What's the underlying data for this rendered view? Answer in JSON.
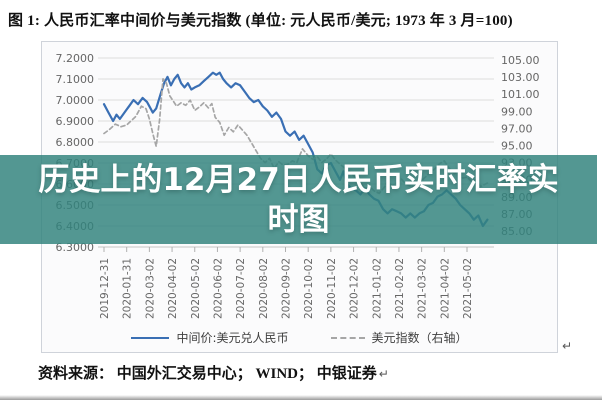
{
  "header": {
    "title": "图 1: 人民币汇率中间价与美元指数 (单位: 元人民币/美元; 1973 年 3 月=100)"
  },
  "overlay": {
    "lines": [
      "历史上的12月27日人民币实时汇率实",
      "时图"
    ],
    "band_color": "rgba(50,131,125,0.84)"
  },
  "footer": {
    "source": "资料来源： 中国外汇交易中心； WIND； 中银证券",
    "return_mark": "↵"
  },
  "colors": {
    "cny_line": "#3a6fb4",
    "usd_line": "#a6a6a6",
    "gridline": "#dcdcdc",
    "axis_text": "#666666"
  },
  "chart_data": {
    "type": "line",
    "title": "人民币汇率中间价与美元指数",
    "unit_note": "元人民币/美元; 1973 年 3 月=100",
    "grid": true,
    "legend_position": "bottom",
    "x_tick_labels": [
      "2019-12-31",
      "2020-01-31",
      "2020-03-02",
      "2020-04-02",
      "2020-05-02",
      "2020-06-02",
      "2020-07-02",
      "2020-08-02",
      "2020-09-02",
      "2020-10-02",
      "2020-11-02",
      "2020-12-02",
      "2021-01-02",
      "2021-02-02",
      "2021-03-02",
      "2021-04-02",
      "2021-05-02"
    ],
    "y_left_axis": {
      "labels": [
        "7.2000",
        "7.1000",
        "7.0000",
        "6.9000",
        "6.8000",
        "6.7000",
        "6.6000",
        "6.5000",
        "6.4000",
        "6.3000"
      ],
      "min": 6.3,
      "max": 7.2
    },
    "y_right_axis": {
      "labels": [
        "105.00",
        "103.00",
        "101.00",
        "99.00",
        "97.00",
        "95.00",
        "93.00",
        "91.00",
        "89.00",
        "87.00",
        "85.00"
      ],
      "min": 85,
      "max": 105
    },
    "series": [
      {
        "name": "中间价:美元兑人民币",
        "axis": "left",
        "line_style": "solid",
        "color": "#3a6fb4",
        "points": [
          [
            0,
            6.98
          ],
          [
            0.2,
            6.94
          ],
          [
            0.4,
            6.9
          ],
          [
            0.55,
            6.93
          ],
          [
            0.7,
            6.91
          ],
          [
            0.9,
            6.94
          ],
          [
            1.1,
            6.97
          ],
          [
            1.3,
            7.0
          ],
          [
            1.5,
            6.98
          ],
          [
            1.7,
            7.01
          ],
          [
            1.9,
            6.99
          ],
          [
            2.0,
            6.97
          ],
          [
            2.15,
            6.94
          ],
          [
            2.3,
            6.96
          ],
          [
            2.5,
            7.03
          ],
          [
            2.65,
            7.08
          ],
          [
            2.8,
            7.11
          ],
          [
            2.95,
            7.07
          ],
          [
            3.1,
            7.1
          ],
          [
            3.25,
            7.12
          ],
          [
            3.4,
            7.08
          ],
          [
            3.55,
            7.06
          ],
          [
            3.7,
            7.08
          ],
          [
            3.85,
            7.05
          ],
          [
            4.0,
            7.06
          ],
          [
            4.2,
            7.07
          ],
          [
            4.4,
            7.09
          ],
          [
            4.6,
            7.11
          ],
          [
            4.8,
            7.13
          ],
          [
            4.95,
            7.12
          ],
          [
            5.1,
            7.13
          ],
          [
            5.25,
            7.1
          ],
          [
            5.4,
            7.08
          ],
          [
            5.6,
            7.06
          ],
          [
            5.8,
            7.08
          ],
          [
            6.0,
            7.07
          ],
          [
            6.2,
            7.04
          ],
          [
            6.4,
            7.01
          ],
          [
            6.6,
            6.99
          ],
          [
            6.8,
            7.0
          ],
          [
            7.0,
            6.97
          ],
          [
            7.2,
            6.95
          ],
          [
            7.4,
            6.92
          ],
          [
            7.6,
            6.94
          ],
          [
            7.8,
            6.91
          ],
          [
            8.0,
            6.85
          ],
          [
            8.2,
            6.83
          ],
          [
            8.4,
            6.85
          ],
          [
            8.6,
            6.81
          ],
          [
            8.8,
            6.83
          ],
          [
            9.0,
            6.79
          ],
          [
            9.2,
            6.75
          ],
          [
            9.4,
            6.67
          ],
          [
            9.6,
            6.65
          ],
          [
            9.8,
            6.69
          ],
          [
            10.0,
            6.7
          ],
          [
            10.2,
            6.66
          ],
          [
            10.4,
            6.62
          ],
          [
            10.55,
            6.66
          ],
          [
            10.7,
            6.6
          ],
          [
            10.9,
            6.58
          ],
          [
            11.1,
            6.57
          ],
          [
            11.3,
            6.55
          ],
          [
            11.5,
            6.58
          ],
          [
            11.7,
            6.55
          ],
          [
            11.9,
            6.53
          ],
          [
            12.1,
            6.52
          ],
          [
            12.3,
            6.48
          ],
          [
            12.5,
            6.46
          ],
          [
            12.7,
            6.48
          ],
          [
            12.9,
            6.47
          ],
          [
            13.1,
            6.46
          ],
          [
            13.3,
            6.44
          ],
          [
            13.5,
            6.46
          ],
          [
            13.7,
            6.44
          ],
          [
            13.9,
            6.46
          ],
          [
            14.1,
            6.47
          ],
          [
            14.3,
            6.5
          ],
          [
            14.5,
            6.51
          ],
          [
            14.7,
            6.54
          ],
          [
            14.9,
            6.55
          ],
          [
            15.1,
            6.57
          ],
          [
            15.3,
            6.55
          ],
          [
            15.5,
            6.53
          ],
          [
            15.7,
            6.5
          ],
          [
            15.9,
            6.48
          ],
          [
            16.1,
            6.46
          ],
          [
            16.3,
            6.43
          ],
          [
            16.5,
            6.45
          ],
          [
            16.7,
            6.4
          ],
          [
            16.9,
            6.43
          ]
        ]
      },
      {
        "name": "美元指数（右轴）",
        "axis": "right",
        "line_style": "dashed",
        "color": "#a6a6a6",
        "points": [
          [
            0,
            96.4
          ],
          [
            0.25,
            96.9
          ],
          [
            0.5,
            97.5
          ],
          [
            0.75,
            97.2
          ],
          [
            1.0,
            97.4
          ],
          [
            1.2,
            97.9
          ],
          [
            1.4,
            98.4
          ],
          [
            1.65,
            99.6
          ],
          [
            1.85,
            99.3
          ],
          [
            2.0,
            98.1
          ],
          [
            2.15,
            96.4
          ],
          [
            2.3,
            94.9
          ],
          [
            2.45,
            98.0
          ],
          [
            2.6,
            102.8
          ],
          [
            2.75,
            102.3
          ],
          [
            2.9,
            100.8
          ],
          [
            3.05,
            100.2
          ],
          [
            3.2,
            99.6
          ],
          [
            3.4,
            100.0
          ],
          [
            3.6,
            99.7
          ],
          [
            3.8,
            100.3
          ],
          [
            4.0,
            99.1
          ],
          [
            4.2,
            99.5
          ],
          [
            4.4,
            100.0
          ],
          [
            4.6,
            99.4
          ],
          [
            4.75,
            99.9
          ],
          [
            4.9,
            98.3
          ],
          [
            5.1,
            97.7
          ],
          [
            5.3,
            96.2
          ],
          [
            5.5,
            97.1
          ],
          [
            5.7,
            96.6
          ],
          [
            5.9,
            97.4
          ],
          [
            6.1,
            96.8
          ],
          [
            6.3,
            96.2
          ],
          [
            6.5,
            95.3
          ],
          [
            6.7,
            94.4
          ],
          [
            6.9,
            93.5
          ],
          [
            7.1,
            93.0
          ],
          [
            7.3,
            93.5
          ],
          [
            7.5,
            92.3
          ],
          [
            7.7,
            93.1
          ],
          [
            7.9,
            92.7
          ],
          [
            8.1,
            92.8
          ],
          [
            8.3,
            93.2
          ],
          [
            8.5,
            93.0
          ],
          [
            8.75,
            94.6
          ],
          [
            9.0,
            93.8
          ],
          [
            9.2,
            93.4
          ],
          [
            9.4,
            93.7
          ],
          [
            9.6,
            93.0
          ],
          [
            9.8,
            93.4
          ],
          [
            10.0,
            94.0
          ],
          [
            10.2,
            93.3
          ],
          [
            10.5,
            92.6
          ],
          [
            10.7,
            92.2
          ],
          [
            10.9,
            91.8
          ],
          [
            11.1,
            91.2
          ],
          [
            11.3,
            90.8
          ],
          [
            11.5,
            89.9
          ],
          [
            11.7,
            90.2
          ],
          [
            11.9,
            89.7
          ],
          [
            12.13,
            89.4
          ],
          [
            12.35,
            90.1
          ],
          [
            12.5,
            90.8
          ],
          [
            12.7,
            90.3
          ],
          [
            12.9,
            90.6
          ],
          [
            13.1,
            91.1
          ],
          [
            13.3,
            90.5
          ],
          [
            13.55,
            90.2
          ],
          [
            13.75,
            90.1
          ],
          [
            14.0,
            90.9
          ],
          [
            14.2,
            91.4
          ],
          [
            14.4,
            91.9
          ],
          [
            14.6,
            92.3
          ],
          [
            14.8,
            92.9
          ],
          [
            15.0,
            93.2
          ],
          [
            15.2,
            92.4
          ],
          [
            15.43,
            91.7
          ],
          [
            15.6,
            91.9
          ],
          [
            15.8,
            91.2
          ],
          [
            16.0,
            91.3
          ],
          [
            16.2,
            90.8
          ],
          [
            16.4,
            91.0
          ],
          [
            16.6,
            90.2
          ],
          [
            16.9,
            90.6
          ]
        ]
      }
    ]
  }
}
